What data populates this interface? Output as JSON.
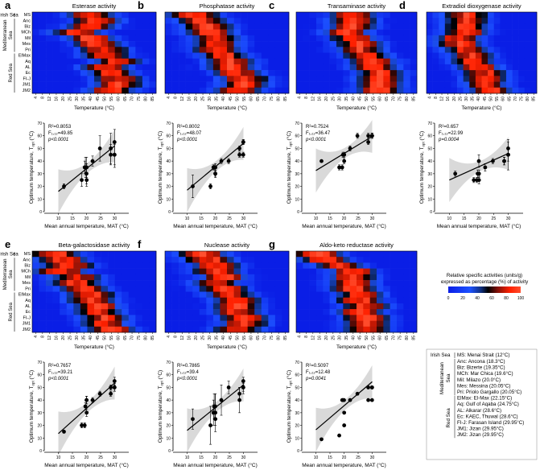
{
  "figure": {
    "temperature_label": "Temperature (°C)",
    "temperature_ticks": [
      "4",
      "8",
      "12",
      "16",
      "20",
      "25",
      "30",
      "35",
      "40",
      "45",
      "50",
      "55",
      "60",
      "65",
      "70",
      "75",
      "80",
      "85"
    ],
    "groups": [
      {
        "name": "Irish Sea",
        "rows": [
          "MS"
        ]
      },
      {
        "name": "Mediterranean Sea",
        "rows": [
          "Anc",
          "Biz",
          "MCh",
          "Mil",
          "Mes",
          "Pri"
        ]
      },
      {
        "name": "Red Sea",
        "rows": [
          "ElMax",
          "Aq",
          "AL",
          "Ec",
          "FI-J",
          "JM1",
          "JM2"
        ]
      }
    ],
    "scatter_ylabel": "Optimum temperature, T",
    "scatter_ysub": "opt",
    "scatter_yunit": " (°C)",
    "scatter_xlabel": "Mean annual temperature, MAT (°C)",
    "color_scale": {
      "title_line1": "Relative specific activities (units/g)",
      "title_line2": "expressed as percentage (%) of activity",
      "ticks": [
        "0",
        "20",
        "40",
        "60",
        "80",
        "100"
      ],
      "colors": [
        "#0a1ee6",
        "#1d52ff",
        "#103080",
        "#000000",
        "#801008",
        "#ff2000",
        "#ff5030"
      ]
    },
    "legend": {
      "irish_label": "Irish Sea",
      "med_label": "Mediterranean Sea",
      "red_label": "Red Sea",
      "irish": [
        "MS: Menai Strait (12°C)"
      ],
      "med": [
        "Anc: Ancona (18.3°C)",
        "Biz: Bizerte (19.35°C)",
        "MCh: Mar Chica (19.6°C)",
        "Mil: Milazo (20.0°C)",
        "Mes: Messina (20.05°C)",
        "Pri: Priolo Gargallo (20.05°C)"
      ],
      "red": [
        "ElMax: El-Max (22.15°C)",
        "Aq: Gulf of Aqaba (24.75°C)",
        "AL: Alkarar (28.6°C)",
        "Ec: KAEC, Thuwal (28.6°C)",
        "FI-J: Farasan Island (29.95°C)",
        "JM1: Jizan (29.95°C)",
        "JM2: Jizan (29.95°C)"
      ]
    }
  },
  "chart_data": [
    {
      "panel": "a",
      "type": "heatmap",
      "title": "Esterase activity",
      "peak_temperature_by_row": [
        40,
        45,
        40,
        30,
        40,
        45,
        50,
        50,
        60,
        50,
        55,
        60,
        60,
        55
      ],
      "stats": {
        "r2": "R²=0.8053",
        "f": "F₁,₁₂=49.85",
        "p": "p<0.0001"
      }
    },
    {
      "panel": "b",
      "type": "heatmap",
      "title": "Phosphatase activity",
      "peak_temperature_by_row": [
        20,
        25,
        30,
        30,
        35,
        35,
        35,
        40,
        45,
        45,
        50,
        55,
        55,
        50
      ],
      "stats": {
        "r2": "R²=0.8002",
        "f": "F₁,₁₂=48.07",
        "p": "p<0.0001"
      }
    },
    {
      "panel": "c",
      "type": "heatmap",
      "title": "Transaminase activity",
      "peak_temperature_by_row": [
        40,
        40,
        40,
        35,
        40,
        45,
        45,
        50,
        55,
        55,
        60,
        60,
        60,
        60
      ],
      "stats": {
        "r2": "R²=0.7524",
        "f": "F₁,₁₂=36.47",
        "p": "p<0.0001"
      }
    },
    {
      "panel": "d",
      "type": "heatmap",
      "title": "Extradiol dioxygenase activity",
      "peak_temperature_by_row": [
        30,
        30,
        30,
        30,
        25,
        25,
        30,
        35,
        35,
        40,
        45,
        45,
        45,
        50
      ],
      "stats": {
        "r2": "R²=0.657",
        "f": "F₁,₁₂=22.99",
        "p": "p=0.0004"
      }
    },
    {
      "panel": "e",
      "type": "heatmap",
      "title": "Beta-galactosidase activity",
      "peak_temperature_by_row": [
        15,
        20,
        25,
        20,
        30,
        30,
        35,
        40,
        40,
        45,
        45,
        50,
        50,
        55
      ],
      "stats": {
        "r2": "R²=0.7657",
        "f": "F₁,₁₂=39.21",
        "p": "p<0.0001"
      }
    },
    {
      "panel": "f",
      "type": "heatmap",
      "title": "Nuclease activity",
      "peak_temperature_by_row": [
        25,
        30,
        35,
        35,
        40,
        35,
        40,
        45,
        50,
        50,
        50,
        55,
        55,
        50
      ],
      "stats": {
        "r2": "R²=0.7865",
        "f": "F₁,₁₂=39.4",
        "p": "p<0.0001"
      }
    },
    {
      "panel": "g",
      "type": "heatmap",
      "title": "Aldo-keto reductase activity",
      "peak_temperature_by_row": [
        15,
        20,
        30,
        40,
        40,
        40,
        40,
        45,
        45,
        50,
        45,
        50,
        50,
        50
      ],
      "stats": {
        "r2": "R²=0.5097",
        "f": "F₁,₁₂=12.48",
        "p": "p=0.0041"
      }
    },
    {
      "panel": "a",
      "type": "scatter",
      "xlabel": "Mean annual temperature, MAT (°C)",
      "ylabel": "Optimum temperature, Topt (°C)",
      "xlim": [
        5,
        35
      ],
      "ylim": [
        0,
        70
      ],
      "x": [
        12,
        18.3,
        19.35,
        19.6,
        20,
        20.05,
        20.05,
        22.15,
        24.75,
        28.6,
        28.6,
        29.95,
        29.95,
        29.95
      ],
      "y": [
        20,
        25,
        35,
        35,
        30,
        25,
        35,
        40,
        50,
        45,
        50,
        45,
        55,
        45
      ],
      "yerr": [
        2,
        5,
        5,
        8,
        8,
        5,
        8,
        4,
        10,
        8,
        12,
        8,
        10,
        10
      ],
      "fit": {
        "intercept": -2.0,
        "slope": 1.8
      }
    },
    {
      "panel": "b",
      "type": "scatter",
      "xlabel": "Mean annual temperature, MAT (°C)",
      "ylabel": "Optimum temperature, Topt (°C)",
      "xlim": [
        5,
        35
      ],
      "ylim": [
        0,
        70
      ],
      "x": [
        12,
        18.3,
        19.35,
        19.6,
        20,
        20.05,
        20.05,
        22.15,
        24.75,
        28.6,
        28.6,
        29.95,
        29.95,
        29.95
      ],
      "y": [
        20,
        20,
        35,
        35,
        30,
        30,
        35,
        40,
        40,
        50,
        45,
        45,
        55,
        55
      ],
      "yerr": [
        9,
        2,
        2,
        2,
        2,
        3,
        3,
        2,
        2,
        2,
        2,
        2,
        2,
        2
      ],
      "fit": {
        "intercept": -1.5,
        "slope": 1.85
      }
    },
    {
      "panel": "c",
      "type": "scatter",
      "xlabel": "Mean annual temperature, MAT (°C)",
      "ylabel": "Optimum temperature, Topt (°C)",
      "xlim": [
        5,
        35
      ],
      "ylim": [
        0,
        70
      ],
      "x": [
        12,
        18.3,
        19.35,
        19.6,
        20,
        20.05,
        20.05,
        22.15,
        24.75,
        28.6,
        28.6,
        29.95,
        29.95,
        29.95
      ],
      "y": [
        40,
        35,
        35,
        45,
        45,
        45,
        40,
        50,
        60,
        55,
        60,
        60,
        60,
        60
      ],
      "yerr": [
        1,
        2,
        2,
        2,
        2,
        1,
        2,
        2,
        2,
        2,
        2,
        2,
        2,
        2
      ],
      "fit": {
        "intercept": 19,
        "slope": 1.35
      }
    },
    {
      "panel": "d",
      "type": "scatter",
      "xlabel": "Mean annual temperature, MAT (°C)",
      "ylabel": "Optimum temperature, Topt (°C)",
      "xlim": [
        5,
        35
      ],
      "ylim": [
        0,
        70
      ],
      "x": [
        12,
        18.3,
        19.35,
        19.6,
        20,
        20.05,
        20.05,
        22.15,
        24.75,
        28.6,
        28.6,
        29.95,
        29.95,
        29.95
      ],
      "y": [
        30,
        25,
        25,
        30,
        40,
        25,
        30,
        35,
        40,
        40,
        40,
        45,
        45,
        50
      ],
      "yerr": [
        2,
        2,
        2,
        3,
        5,
        3,
        3,
        3,
        2,
        3,
        3,
        5,
        12,
        5
      ],
      "fit": {
        "intercept": 14.5,
        "slope": 1.05
      }
    },
    {
      "panel": "e",
      "type": "scatter",
      "xlabel": "Mean annual temperature, MAT (°C)",
      "ylabel": "Optimum temperature, Topt (°C)",
      "xlim": [
        5,
        35
      ],
      "ylim": [
        0,
        70
      ],
      "x": [
        12,
        18.3,
        19.35,
        19.6,
        20,
        20.05,
        20.05,
        22.15,
        24.75,
        28.6,
        28.6,
        29.95,
        29.95,
        29.95
      ],
      "y": [
        15,
        20,
        20,
        35,
        40,
        30,
        40,
        40,
        45,
        45,
        50,
        50,
        55,
        50
      ],
      "yerr": [
        1,
        2,
        2,
        3,
        3,
        3,
        3,
        2,
        2,
        2,
        2,
        3,
        3,
        3
      ],
      "fit": {
        "intercept": -6.5,
        "slope": 2.0
      }
    },
    {
      "panel": "f",
      "type": "scatter",
      "xlabel": "Mean annual temperature, MAT (°C)",
      "ylabel": "Optimum temperature, Topt (°C)",
      "xlim": [
        5,
        35
      ],
      "ylim": [
        0,
        70
      ],
      "x": [
        12,
        18.3,
        19.35,
        19.6,
        20,
        20.05,
        20.05,
        22.15,
        24.75,
        28.6,
        28.6,
        29.95,
        29.95,
        29.95
      ],
      "y": [
        25,
        20,
        30,
        35,
        35,
        25,
        30,
        40,
        50,
        40,
        45,
        50,
        55,
        50
      ],
      "yerr": [
        8,
        15,
        10,
        10,
        10,
        5,
        15,
        12,
        5,
        10,
        5,
        5,
        3,
        3
      ],
      "fit": {
        "intercept": -2.0,
        "slope": 1.8
      }
    },
    {
      "panel": "g",
      "type": "scatter",
      "xlabel": "Mean annual temperature, MAT (°C)",
      "ylabel": "Optimum temperature, Topt (°C)",
      "xlim": [
        5,
        35
      ],
      "ylim": [
        0,
        70
      ],
      "x": [
        12,
        18.3,
        19.35,
        19.6,
        20,
        20.05,
        20.05,
        22.15,
        24.75,
        28.6,
        28.6,
        29.95,
        29.95,
        29.95
      ],
      "y": [
        9,
        12,
        40,
        40,
        40,
        30,
        20,
        40,
        45,
        50,
        40,
        50,
        50,
        40
      ],
      "yerr": [
        1,
        1,
        1,
        1,
        1,
        1,
        1,
        1,
        1,
        1,
        1,
        1,
        1,
        1
      ],
      "fit": {
        "intercept": -2.5,
        "slope": 1.9
      }
    }
  ]
}
